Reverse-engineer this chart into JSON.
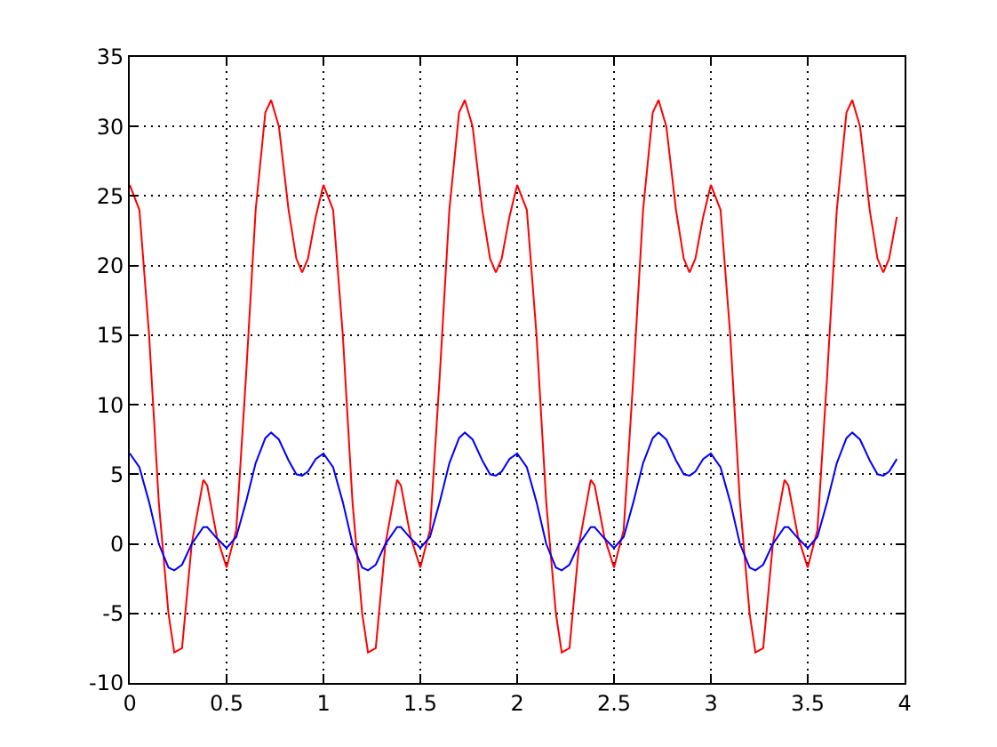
{
  "chart_data": {
    "type": "line",
    "x": [
      0,
      0.05,
      0.1,
      0.15,
      0.2,
      0.23,
      0.27,
      0.32,
      0.38,
      0.4,
      0.45,
      0.5,
      0.55,
      0.6,
      0.65,
      0.7,
      0.73,
      0.77,
      0.82,
      0.86,
      0.89,
      0.92,
      0.96,
      1,
      1.05,
      1.1,
      1.15,
      1.2,
      1.23,
      1.27,
      1.32,
      1.38,
      1.4,
      1.45,
      1.5,
      1.55,
      1.6,
      1.65,
      1.7,
      1.73,
      1.77,
      1.82,
      1.86,
      1.89,
      1.92,
      1.96,
      2,
      2.05,
      2.1,
      2.15,
      2.2,
      2.23,
      2.27,
      2.32,
      2.38,
      2.4,
      2.45,
      2.5,
      2.55,
      2.6,
      2.65,
      2.7,
      2.73,
      2.77,
      2.82,
      2.86,
      2.89,
      2.92,
      2.96,
      3,
      3.05,
      3.1,
      3.15,
      3.2,
      3.23,
      3.27,
      3.32,
      3.38,
      3.4,
      3.45,
      3.5,
      3.55,
      3.6,
      3.65,
      3.7,
      3.73,
      3.77,
      3.82,
      3.86,
      3.89,
      3.92,
      3.96
    ],
    "series": [
      {
        "color": "#ff0000",
        "values": [
          25.8,
          24,
          15,
          3,
          -5,
          -7.8,
          -7.5,
          0,
          4.6,
          4.2,
          0.5,
          -1.7,
          1,
          12,
          24,
          31,
          31.9,
          30,
          24,
          20.5,
          19.5,
          20.5,
          23.5,
          25.8,
          24,
          15,
          3,
          -5,
          -7.8,
          -7.5,
          0,
          4.6,
          4.2,
          0.5,
          -1.7,
          1,
          12,
          24,
          31,
          31.9,
          30,
          24,
          20.5,
          19.5,
          20.5,
          23.5,
          25.8,
          24,
          15,
          3,
          -5,
          -7.8,
          -7.5,
          0,
          4.6,
          4.2,
          0.5,
          -1.7,
          1,
          12,
          24,
          31,
          31.9,
          30,
          24,
          20.5,
          19.5,
          20.5,
          23.5,
          25.8,
          24,
          15,
          3,
          -5,
          -7.8,
          -7.5,
          0,
          4.6,
          4.2,
          0.5,
          -1.7,
          1,
          12,
          24,
          31,
          31.9,
          30,
          24,
          20.5,
          19.5,
          20.5,
          23.5
        ]
      },
      {
        "color": "#0000ff",
        "values": [
          6.5,
          5.5,
          3,
          0,
          -1.7,
          -1.9,
          -1.5,
          0,
          1.2,
          1.2,
          0.4,
          -0.3,
          0.5,
          3,
          5.8,
          7.6,
          8,
          7.5,
          6,
          5,
          4.9,
          5.2,
          6.1,
          6.5,
          5.5,
          3,
          0,
          -1.7,
          -1.9,
          -1.5,
          0,
          1.2,
          1.2,
          0.4,
          -0.3,
          0.5,
          3,
          5.8,
          7.6,
          8,
          7.5,
          6,
          5,
          4.9,
          5.2,
          6.1,
          6.5,
          5.5,
          3,
          0,
          -1.7,
          -1.9,
          -1.5,
          0,
          1.2,
          1.2,
          0.4,
          -0.3,
          0.5,
          3,
          5.8,
          7.6,
          8,
          7.5,
          6,
          5,
          4.9,
          5.2,
          6.1,
          6.5,
          5.5,
          3,
          0,
          -1.7,
          -1.9,
          -1.5,
          0,
          1.2,
          1.2,
          0.4,
          -0.3,
          0.5,
          3,
          5.8,
          7.6,
          8,
          7.5,
          6,
          5,
          4.9,
          5.2,
          6.1
        ]
      }
    ],
    "xlim": [
      0,
      4
    ],
    "xticks": [
      0,
      0.5,
      1,
      1.5,
      2,
      2.5,
      3,
      3.5,
      4
    ],
    "ylim": [
      -10,
      35
    ],
    "yticks": [
      -10,
      -5,
      0,
      5,
      10,
      15,
      20,
      25,
      30,
      35
    ],
    "grid": true,
    "line_style": "solid",
    "marker": "none"
  }
}
